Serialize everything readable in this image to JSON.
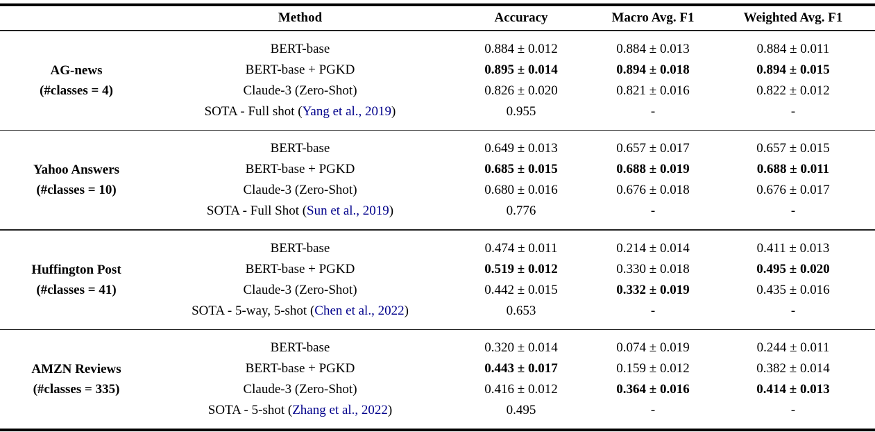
{
  "table": {
    "header": {
      "method": "Method",
      "columns": [
        "Accuracy",
        "Macro Avg. F1",
        "Weighted Avg. F1"
      ]
    },
    "citation_color": "#00008B",
    "blocks": [
      {
        "dataset": "AG-news",
        "classes_label": "(#classes = 4)",
        "rows": [
          {
            "method": "BERT-base",
            "values": [
              "0.884 ± 0.012",
              "0.884 ± 0.013",
              "0.884 ± 0.011"
            ],
            "bold": [
              false,
              false,
              false
            ]
          },
          {
            "method": "BERT-base + PGKD",
            "values": [
              "0.895 ± 0.014",
              "0.894 ± 0.018",
              "0.894 ± 0.015"
            ],
            "bold": [
              true,
              true,
              true
            ]
          },
          {
            "method": "Claude-3 (Zero-Shot)",
            "values": [
              "0.826 ± 0.020",
              "0.821 ± 0.016",
              "0.822 ± 0.012"
            ],
            "bold": [
              false,
              false,
              false
            ]
          },
          {
            "method_prefix": "SOTA - Full shot (",
            "citation": "Yang et al., 2019",
            "method_suffix": ")",
            "values": [
              "0.955",
              "-",
              "-"
            ],
            "bold": [
              false,
              false,
              false
            ]
          }
        ]
      },
      {
        "dataset": "Yahoo Answers",
        "classes_label": "(#classes = 10)",
        "rows": [
          {
            "method": "BERT-base",
            "values": [
              "0.649 ± 0.013",
              "0.657 ± 0.017",
              "0.657 ± 0.015"
            ],
            "bold": [
              false,
              false,
              false
            ]
          },
          {
            "method": "BERT-base + PGKD",
            "values": [
              "0.685 ± 0.015",
              "0.688 ± 0.019",
              "0.688 ± 0.011"
            ],
            "bold": [
              true,
              true,
              true
            ]
          },
          {
            "method": "Claude-3 (Zero-Shot)",
            "values": [
              "0.680 ± 0.016",
              "0.676 ± 0.018",
              "0.676 ± 0.017"
            ],
            "bold": [
              false,
              false,
              false
            ]
          },
          {
            "method_prefix": "SOTA - Full Shot (",
            "citation": "Sun et al., 2019",
            "method_suffix": ")",
            "values": [
              "0.776",
              "-",
              "-"
            ],
            "bold": [
              false,
              false,
              false
            ]
          }
        ]
      },
      {
        "dataset": "Huffington Post",
        "classes_label": "(#classes = 41)",
        "rows": [
          {
            "method": "BERT-base",
            "values": [
              "0.474 ± 0.011",
              "0.214 ± 0.014",
              "0.411 ± 0.013"
            ],
            "bold": [
              false,
              false,
              false
            ]
          },
          {
            "method": "BERT-base + PGKD",
            "values": [
              "0.519 ± 0.012",
              "0.330 ± 0.018",
              "0.495 ± 0.020"
            ],
            "bold": [
              true,
              false,
              true
            ]
          },
          {
            "method": "Claude-3 (Zero-Shot)",
            "values": [
              "0.442 ± 0.015",
              "0.332 ± 0.019",
              "0.435 ± 0.016"
            ],
            "bold": [
              false,
              true,
              false
            ]
          },
          {
            "method_prefix": "SOTA - 5-way, 5-shot (",
            "citation": "Chen et al., 2022",
            "method_suffix": ")",
            "values": [
              "0.653",
              "-",
              "-"
            ],
            "bold": [
              false,
              false,
              false
            ]
          }
        ]
      },
      {
        "dataset": "AMZN Reviews",
        "classes_label": "(#classes = 335)",
        "rows": [
          {
            "method": "BERT-base",
            "values": [
              "0.320 ± 0.014",
              "0.074 ± 0.019",
              "0.244 ± 0.011"
            ],
            "bold": [
              false,
              false,
              false
            ]
          },
          {
            "method": "BERT-base + PGKD",
            "values": [
              "0.443 ± 0.017",
              "0.159 ± 0.012",
              "0.382 ± 0.014"
            ],
            "bold": [
              true,
              false,
              false
            ]
          },
          {
            "method": "Claude-3 (Zero-Shot)",
            "values": [
              "0.416 ± 0.012",
              "0.364 ± 0.016",
              "0.414 ± 0.013"
            ],
            "bold": [
              false,
              true,
              true
            ]
          },
          {
            "method_prefix": "SOTA - 5-shot (",
            "citation": "Zhang et al., 2022",
            "method_suffix": ")",
            "values": [
              "0.495",
              "-",
              "-"
            ],
            "bold": [
              false,
              false,
              false
            ]
          }
        ]
      }
    ]
  }
}
